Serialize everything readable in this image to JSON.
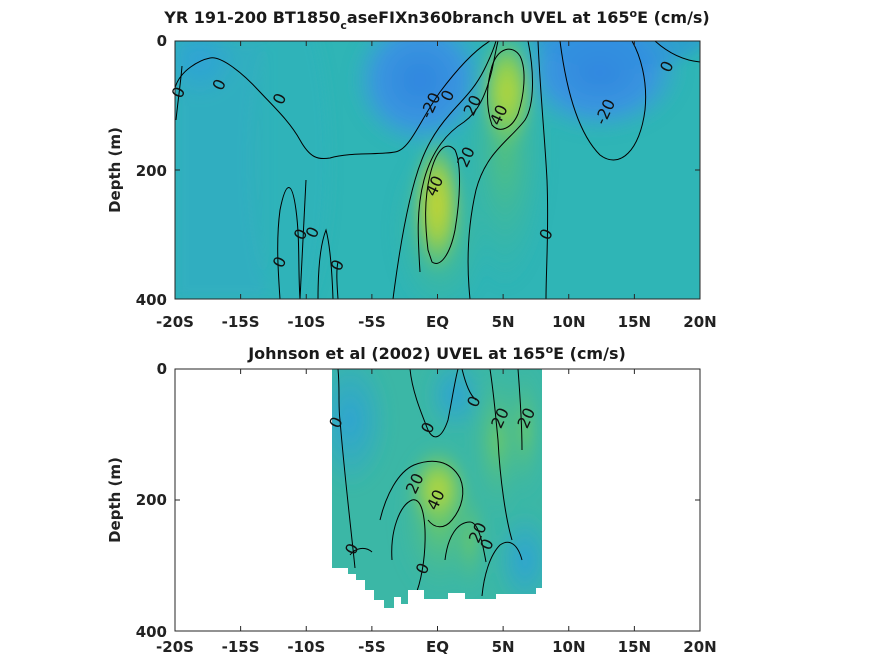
{
  "chart_data": [
    {
      "type": "heatmap",
      "title": "YR 191-200 BT1850",
      "title_subscript": "c",
      "title_rest": "aseFIXn360branch UVEL at 165",
      "title_superscript": "o",
      "title_end": "E (cm/s)",
      "ylabel": "Depth (m)",
      "xlabel": "",
      "xlim": [
        -20,
        20
      ],
      "ylim": [
        400,
        0
      ],
      "x_ticks": [
        -20,
        -15,
        -10,
        -5,
        0,
        5,
        10,
        15,
        20
      ],
      "x_tick_labels": [
        "-20S",
        "-15S",
        "-10S",
        "-5S",
        "EQ",
        "5N",
        "10N",
        "15N",
        "20N"
      ],
      "y_ticks": [
        0,
        200,
        400
      ],
      "y_tick_labels": [
        "0",
        "200",
        "400"
      ],
      "grid": false,
      "colormap": "parula",
      "color_levels": [
        -40,
        -20,
        0,
        20,
        40,
        60
      ],
      "data_extent": {
        "x": [
          -20,
          20
        ],
        "depth": [
          0,
          390
        ]
      },
      "cores": [
        {
          "x": 5.2,
          "depth": 80,
          "value": 45
        },
        {
          "x": 0.0,
          "depth": 240,
          "value": 48
        },
        {
          "x": -1.5,
          "depth": 70,
          "value": -25
        },
        {
          "x": 11.5,
          "depth": 60,
          "value": -18
        },
        {
          "x": -17,
          "depth": 50,
          "value": -6
        }
      ],
      "contour_labels": [
        {
          "text": "0",
          "x": -19.7,
          "depth": 80
        },
        {
          "text": "0",
          "x": -16.6,
          "depth": 68
        },
        {
          "text": "0",
          "x": -12.0,
          "depth": 90
        },
        {
          "text": "-20",
          "x": -0.5,
          "depth": 100
        },
        {
          "text": "0",
          "x": 0.8,
          "depth": 85
        },
        {
          "text": "20",
          "x": 2.7,
          "depth": 100
        },
        {
          "text": "40",
          "x": 4.7,
          "depth": 115
        },
        {
          "text": "20",
          "x": 2.2,
          "depth": 180
        },
        {
          "text": "40",
          "x": -0.2,
          "depth": 225
        },
        {
          "text": "0",
          "x": 8.3,
          "depth": 300
        },
        {
          "text": "-20",
          "x": 12.8,
          "depth": 110
        },
        {
          "text": "0",
          "x": 17.5,
          "depth": 40
        },
        {
          "text": "0",
          "x": -10.4,
          "depth": 300
        },
        {
          "text": "0",
          "x": -9.5,
          "depth": 297
        },
        {
          "text": "0",
          "x": -12.0,
          "depth": 343
        },
        {
          "text": "0",
          "x": -7.6,
          "depth": 348
        }
      ]
    },
    {
      "type": "heatmap",
      "title": "Johnson et al (2002) UVEL at 165",
      "title_superscript": "o",
      "title_end": "E (cm/s)",
      "ylabel": "Depth (m)",
      "xlabel": "",
      "xlim": [
        -20,
        20
      ],
      "ylim": [
        400,
        0
      ],
      "x_ticks": [
        -20,
        -15,
        -10,
        -5,
        0,
        5,
        10,
        15,
        20
      ],
      "x_tick_labels": [
        "-20S",
        "-15S",
        "-10S",
        "-5S",
        "EQ",
        "5N",
        "10N",
        "15N",
        "20N"
      ],
      "y_ticks": [
        0,
        200,
        400
      ],
      "y_tick_labels": [
        "0",
        "200",
        "400"
      ],
      "grid": false,
      "colormap": "parula",
      "color_levels": [
        -40,
        -20,
        0,
        20,
        40,
        60
      ],
      "data_extent": {
        "x": [
          -8,
          8
        ],
        "depth": [
          0,
          360
        ]
      },
      "cores": [
        {
          "x": 0.2,
          "depth": 190,
          "value": 42
        },
        {
          "x": 4.3,
          "depth": 90,
          "value": 22
        },
        {
          "x": 6.8,
          "depth": 80,
          "value": 18
        },
        {
          "x": -3.5,
          "depth": 40,
          "value": 5
        }
      ],
      "contour_labels": [
        {
          "text": "0",
          "x": -7.7,
          "depth": 82
        },
        {
          "text": "0",
          "x": -0.7,
          "depth": 90
        },
        {
          "text": "0",
          "x": 2.8,
          "depth": 50
        },
        {
          "text": "20",
          "x": 4.8,
          "depth": 75
        },
        {
          "text": "20",
          "x": 6.8,
          "depth": 75
        },
        {
          "text": "20",
          "x": -1.7,
          "depth": 175
        },
        {
          "text": "40",
          "x": -0.1,
          "depth": 200
        },
        {
          "text": "20",
          "x": 3.1,
          "depth": 250
        },
        {
          "text": "0",
          "x": 3.8,
          "depth": 268
        },
        {
          "text": "0",
          "x": -6.5,
          "depth": 275
        },
        {
          "text": "0",
          "x": -1.1,
          "depth": 305
        }
      ]
    }
  ]
}
